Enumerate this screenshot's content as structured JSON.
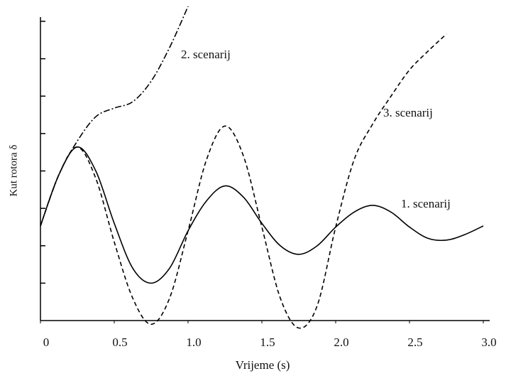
{
  "chart_data": {
    "type": "line",
    "xlabel": "Vrijeme (s)",
    "ylabel": "Kut rotora δ",
    "series": [
      {
        "name": "1. scenarij",
        "color": "#000000",
        "dash": "solid",
        "x": [
          0,
          0.125,
          0.25,
          0.375,
          0.5,
          0.625,
          0.75,
          0.875,
          1.0,
          1.125,
          1.25,
          1.375,
          1.5,
          1.625,
          1.75,
          1.875,
          2.0,
          2.125,
          2.25,
          2.375,
          2.5,
          2.625,
          2.75,
          2.875,
          3.0
        ],
        "values": [
          2.53,
          3.9,
          4.64,
          4.0,
          2.6,
          1.4,
          1.0,
          1.4,
          2.4,
          3.2,
          3.6,
          3.3,
          2.6,
          2.0,
          1.77,
          2.0,
          2.5,
          2.9,
          3.08,
          2.9,
          2.5,
          2.2,
          2.15,
          2.3,
          2.53
        ]
      },
      {
        "name": "2. scenarij",
        "color": "#000000",
        "dash": "dashdot",
        "x": [
          0,
          0.125,
          0.25,
          0.375,
          0.5,
          0.625,
          0.75,
          0.875,
          1.0
        ],
        "values": [
          2.53,
          3.9,
          4.8,
          5.45,
          5.68,
          5.85,
          6.4,
          7.3,
          8.4
        ]
      },
      {
        "name": "3. scenarij",
        "color": "#000000",
        "dash": "dashed",
        "x": [
          0,
          0.125,
          0.25,
          0.375,
          0.5,
          0.625,
          0.75,
          0.875,
          1.0,
          1.125,
          1.25,
          1.375,
          1.5,
          1.625,
          1.75,
          1.875,
          2.0,
          2.125,
          2.25,
          2.375,
          2.5,
          2.625,
          2.75
        ],
        "values": [
          2.53,
          3.9,
          4.64,
          3.8,
          2.1,
          0.6,
          -0.1,
          0.6,
          2.4,
          4.3,
          5.2,
          4.4,
          2.5,
          0.6,
          -0.2,
          0.4,
          2.5,
          4.3,
          5.25,
          6.0,
          6.7,
          7.2,
          7.66
        ]
      }
    ],
    "xlim": [
      0,
      3.0
    ],
    "xticks": [
      0,
      0.5,
      {
        "value": 1,
        "label": "1.0"
      },
      1.5,
      {
        "value": 2,
        "label": "2.0"
      },
      2.5,
      {
        "value": 3,
        "label": "3.0"
      }
    ],
    "ylim": [
      0,
      8
    ],
    "yticks": [
      1,
      2,
      3,
      4,
      5,
      6,
      7,
      8
    ]
  }
}
